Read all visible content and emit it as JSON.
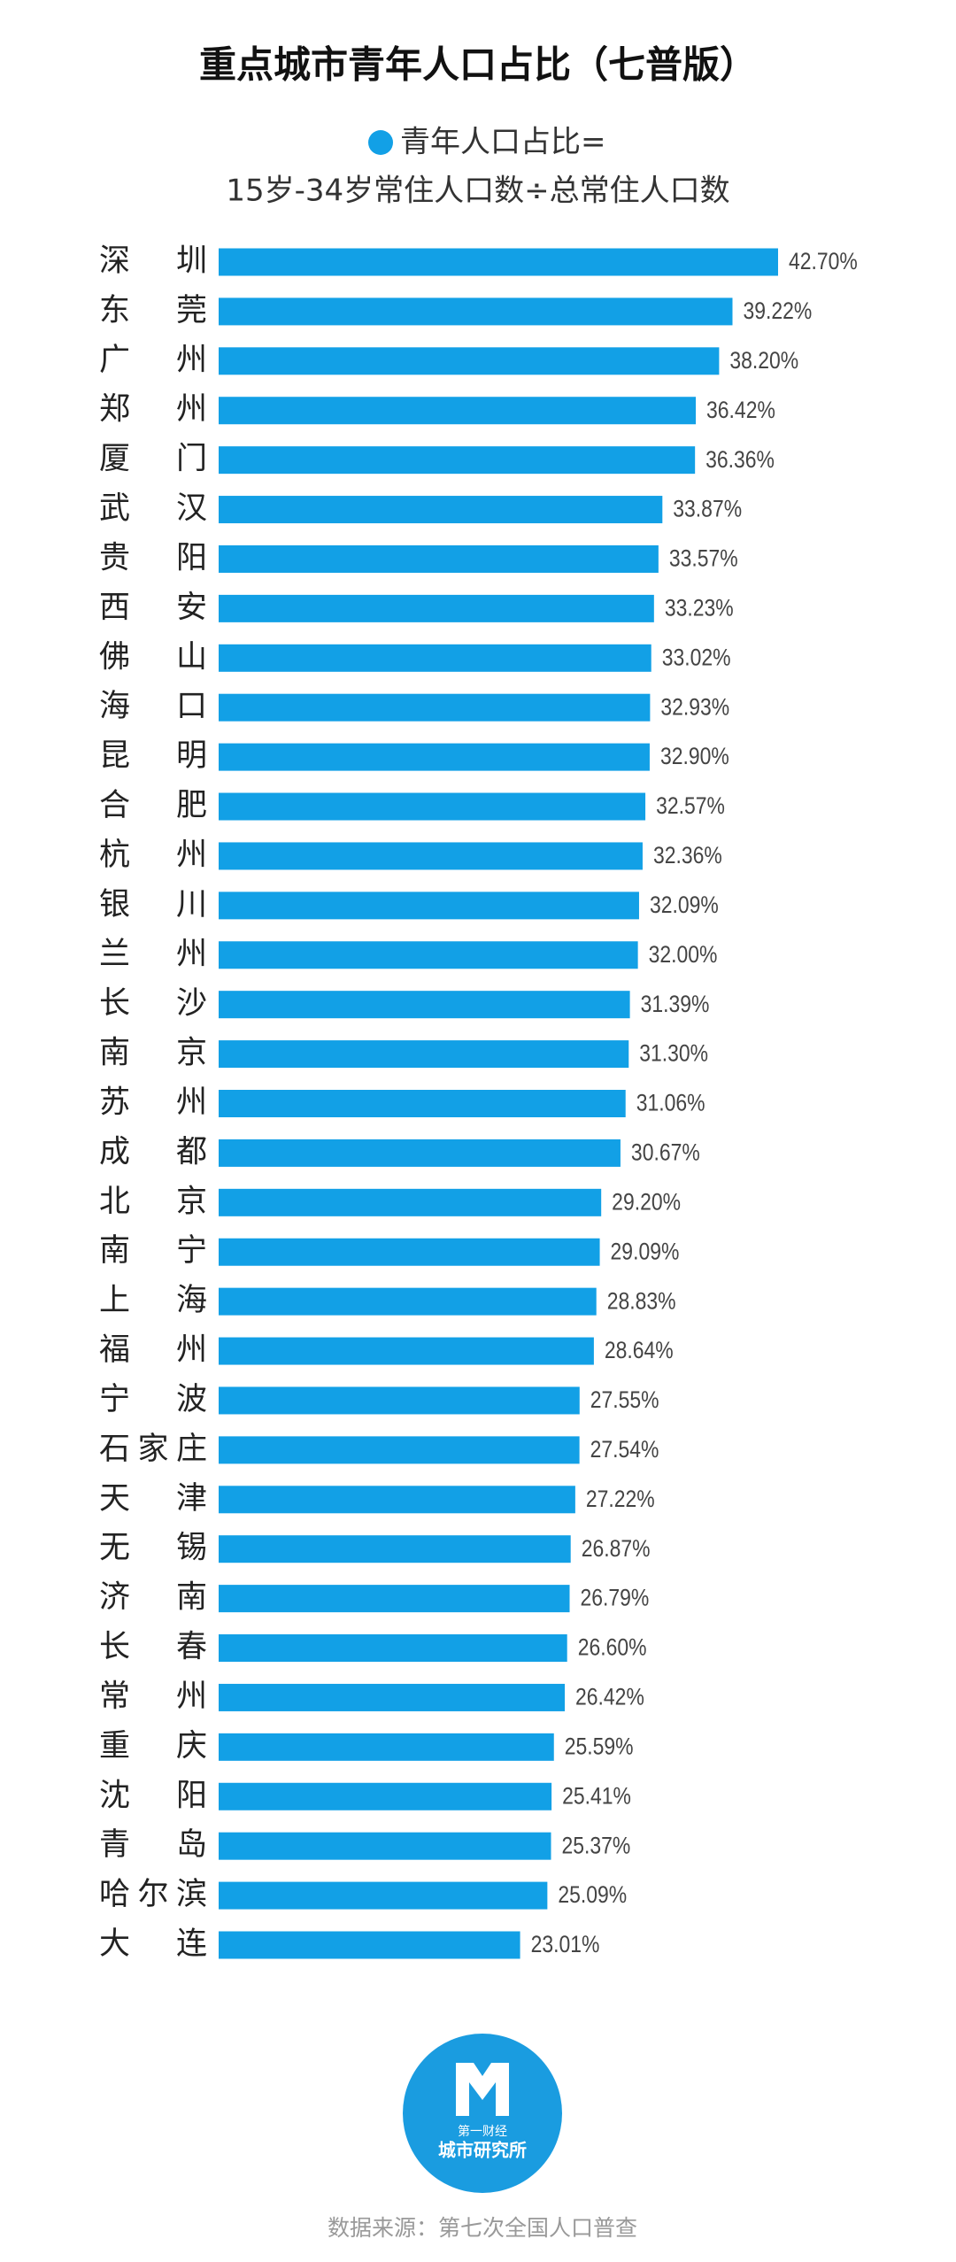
{
  "chart_data": {
    "type": "hbar",
    "title": "重点城市青年人口占比（七普版）",
    "legend_label": "青年人口占比=",
    "subtitle": "15岁-34岁常住人口数÷总常住人口数",
    "color": "#12a0e6",
    "categories": [
      "深圳",
      "东莞",
      "广州",
      "郑州",
      "厦门",
      "武汉",
      "贵阳",
      "西安",
      "佛山",
      "海口",
      "昆明",
      "合肥",
      "杭州",
      "银川",
      "兰州",
      "长沙",
      "南京",
      "苏州",
      "成都",
      "北京",
      "南宁",
      "上海",
      "福州",
      "宁波",
      "石家庄",
      "天津",
      "无锡",
      "济南",
      "长春",
      "常州",
      "重庆",
      "沈阳",
      "青岛",
      "哈尔滨",
      "大连"
    ],
    "values": [
      42.7,
      39.22,
      38.2,
      36.42,
      36.36,
      33.87,
      33.57,
      33.23,
      33.02,
      32.93,
      32.9,
      32.57,
      32.36,
      32.09,
      32.0,
      31.39,
      31.3,
      31.06,
      30.67,
      29.2,
      29.09,
      28.83,
      28.64,
      27.55,
      27.54,
      27.22,
      26.87,
      26.79,
      26.6,
      26.42,
      25.59,
      25.41,
      25.37,
      25.09,
      23.01
    ],
    "value_labels": [
      "42.70%",
      "39.22%",
      "38.20%",
      "36.42%",
      "36.36%",
      "33.87%",
      "33.57%",
      "33.23%",
      "33.02%",
      "32.93%",
      "32.90%",
      "32.57%",
      "32.36%",
      "32.09%",
      "32.00%",
      "31.39%",
      "31.30%",
      "31.06%",
      "30.67%",
      "29.20%",
      "29.09%",
      "28.83%",
      "28.64%",
      "27.55%",
      "27.54%",
      "27.22%",
      "26.87%",
      "26.79%",
      "26.60%",
      "26.42%",
      "25.59%",
      "25.41%",
      "25.37%",
      "25.09%",
      "23.01%"
    ],
    "logo": {
      "line1": "第一财经",
      "line2": "城市研究所"
    },
    "source": "数据来源：第七次全国人口普查"
  }
}
